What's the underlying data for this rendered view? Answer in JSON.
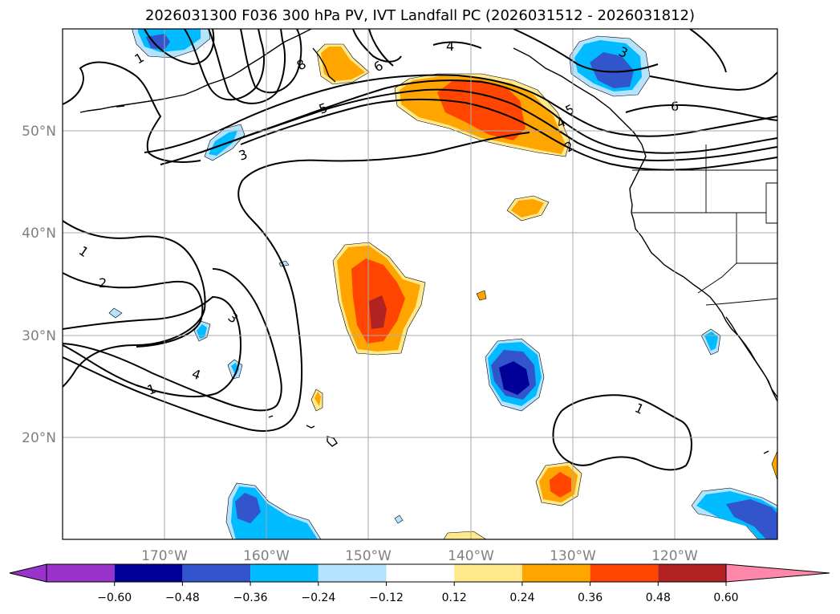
{
  "title": "2026031300 F036 300 hPa PV, IVT Landfall PC (2026031512 - 2026031812)",
  "lon_labels": [
    "170°W",
    "160°W",
    "150°W",
    "140°W",
    "130°W",
    "120°W"
  ],
  "lat_labels": [
    "50°N",
    "40°N",
    "30°N",
    "20°N"
  ],
  "colorbar": {
    "labels": [
      "−0.60",
      "−0.48",
      "−0.36",
      "−0.24",
      "−0.12",
      "0.12",
      "0.24",
      "0.36",
      "0.48",
      "0.60"
    ],
    "colors": [
      "#9933cc",
      "#000099",
      "#3355cc",
      "#00bbff",
      "#b3e3ff",
      "#ffffff",
      "#ffe98c",
      "#ffa500",
      "#ff4500",
      "#b22222",
      "#ff88aa"
    ]
  },
  "contour_labels": [
    "1",
    "2",
    "3",
    "4",
    "1",
    "2",
    "3",
    "4",
    "5",
    "6",
    "4",
    "5",
    "6",
    "3",
    "8",
    "1",
    "1"
  ]
}
